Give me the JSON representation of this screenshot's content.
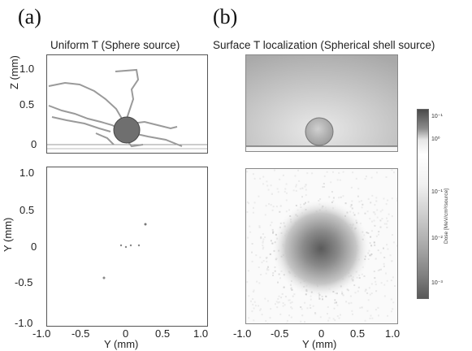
{
  "figure": {
    "panel_a": {
      "letter": "(a)",
      "title": "Uniform T (Sphere source)",
      "top_plot": {
        "ylabel": "Z (mm)",
        "yticks": [
          "1.0",
          "0.5",
          "0"
        ]
      },
      "bottom_plot": {
        "ylabel": "Y (mm)",
        "yticks": [
          "1.0",
          "0.5",
          "0",
          "-0.5",
          "-1.0"
        ],
        "xticks": [
          "-1.0",
          "-0.5",
          "0",
          "0.5",
          "1.0"
        ],
        "xlabel": "Y (mm)"
      }
    },
    "panel_b": {
      "letter": "(b)",
      "title": "Surface T localization (Spherical shell source)",
      "bottom_plot": {
        "xticks": [
          "-1.0",
          "-0.5",
          "0",
          "0.5",
          "1.0"
        ],
        "xlabel": "Y (mm)"
      },
      "colorbar": {
        "label": "Dose [MeV/cm³/source]",
        "ticks": [
          "10⁻¹",
          "10⁰",
          "10⁻¹",
          "10⁻²",
          "10⁻³"
        ]
      }
    }
  }
}
